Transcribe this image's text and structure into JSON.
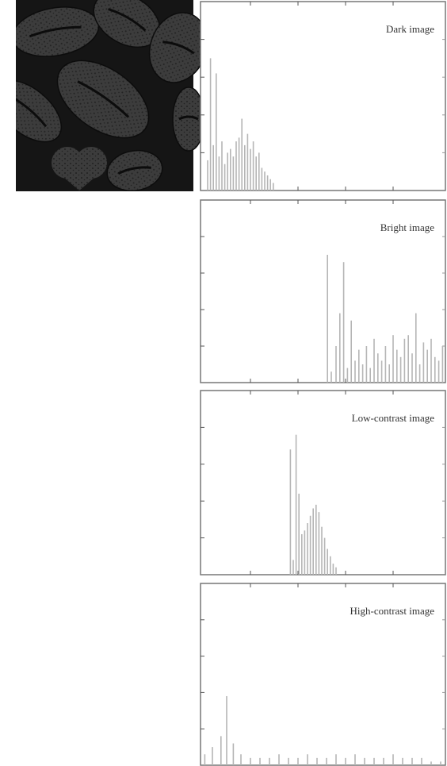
{
  "chart_data": [
    {
      "type": "bar",
      "title": "Dark image",
      "x": [
        5,
        8,
        11,
        14,
        17,
        20,
        23,
        26,
        29,
        32,
        35,
        38,
        41,
        44,
        47,
        50,
        53,
        56,
        59,
        62,
        65,
        68,
        71,
        74
      ],
      "values": [
        0.8,
        3.5,
        1.2,
        3.1,
        0.9,
        1.3,
        0.7,
        1.0,
        1.1,
        0.9,
        1.3,
        1.4,
        1.9,
        1.2,
        1.5,
        1.1,
        1.3,
        0.9,
        1.0,
        0.6,
        0.5,
        0.4,
        0.3,
        0.2
      ],
      "color": "#b5b5b5",
      "xlim": [
        0,
        255
      ],
      "xticks": [
        50,
        100,
        150,
        200
      ],
      "ylim": [
        0,
        5
      ],
      "yticks": [
        1,
        2,
        3,
        4
      ]
    },
    {
      "type": "bar",
      "title": "Bright image",
      "x": [
        131,
        135,
        140,
        144,
        148,
        152,
        156,
        160,
        164,
        168,
        172,
        176,
        180,
        184,
        188,
        192,
        196,
        200,
        204,
        208,
        212,
        216,
        220,
        224,
        228,
        232,
        236,
        240,
        244,
        248,
        252
      ],
      "values": [
        3.5,
        0.3,
        1.0,
        1.9,
        3.3,
        0.4,
        1.7,
        0.6,
        0.9,
        0.5,
        1.0,
        0.4,
        1.2,
        0.8,
        0.6,
        1.0,
        0.5,
        1.3,
        0.9,
        0.7,
        1.2,
        1.3,
        0.8,
        1.9,
        0.5,
        1.1,
        0.9,
        1.2,
        0.7,
        0.6,
        1.0
      ],
      "color": "#b5b5b5",
      "xlim": [
        0,
        255
      ],
      "xticks": [
        50,
        100,
        150,
        200
      ],
      "ylim": [
        0,
        5
      ],
      "yticks": [
        1,
        2,
        3,
        4
      ]
    },
    {
      "type": "bar",
      "title": "Low-contrast image",
      "x": [
        92,
        95,
        98,
        101,
        104,
        107,
        110,
        113,
        116,
        119,
        122,
        125,
        128,
        131,
        134,
        137,
        140
      ],
      "values": [
        3.4,
        0.4,
        3.8,
        2.2,
        1.1,
        1.2,
        1.4,
        1.6,
        1.8,
        1.9,
        1.7,
        1.3,
        1.0,
        0.7,
        0.5,
        0.3,
        0.2
      ],
      "color": "#b5b5b5",
      "xlim": [
        0,
        255
      ],
      "xticks": [
        50,
        100,
        150,
        200
      ],
      "ylim": [
        0,
        5
      ],
      "yticks": [
        1,
        2,
        3,
        4
      ]
    },
    {
      "type": "bar",
      "title": "High-contrast image",
      "x": [
        2,
        10,
        19,
        25,
        32,
        40,
        50,
        60,
        70,
        80,
        90,
        100,
        110,
        120,
        130,
        140,
        150,
        160,
        170,
        180,
        190,
        200,
        210,
        220,
        230,
        240,
        250
      ],
      "values": [
        0.3,
        0.5,
        0.8,
        1.9,
        0.6,
        0.3,
        0.2,
        0.2,
        0.2,
        0.3,
        0.2,
        0.2,
        0.3,
        0.2,
        0.2,
        0.3,
        0.2,
        0.3,
        0.2,
        0.2,
        0.2,
        0.3,
        0.2,
        0.2,
        0.2,
        0.1,
        0.1
      ],
      "color": "#b5b5b5",
      "xlim": [
        0,
        255
      ],
      "xticks": [
        50,
        100,
        150,
        200
      ],
      "ylim": [
        0,
        5
      ],
      "yticks": [
        1,
        2,
        3,
        4
      ]
    }
  ]
}
